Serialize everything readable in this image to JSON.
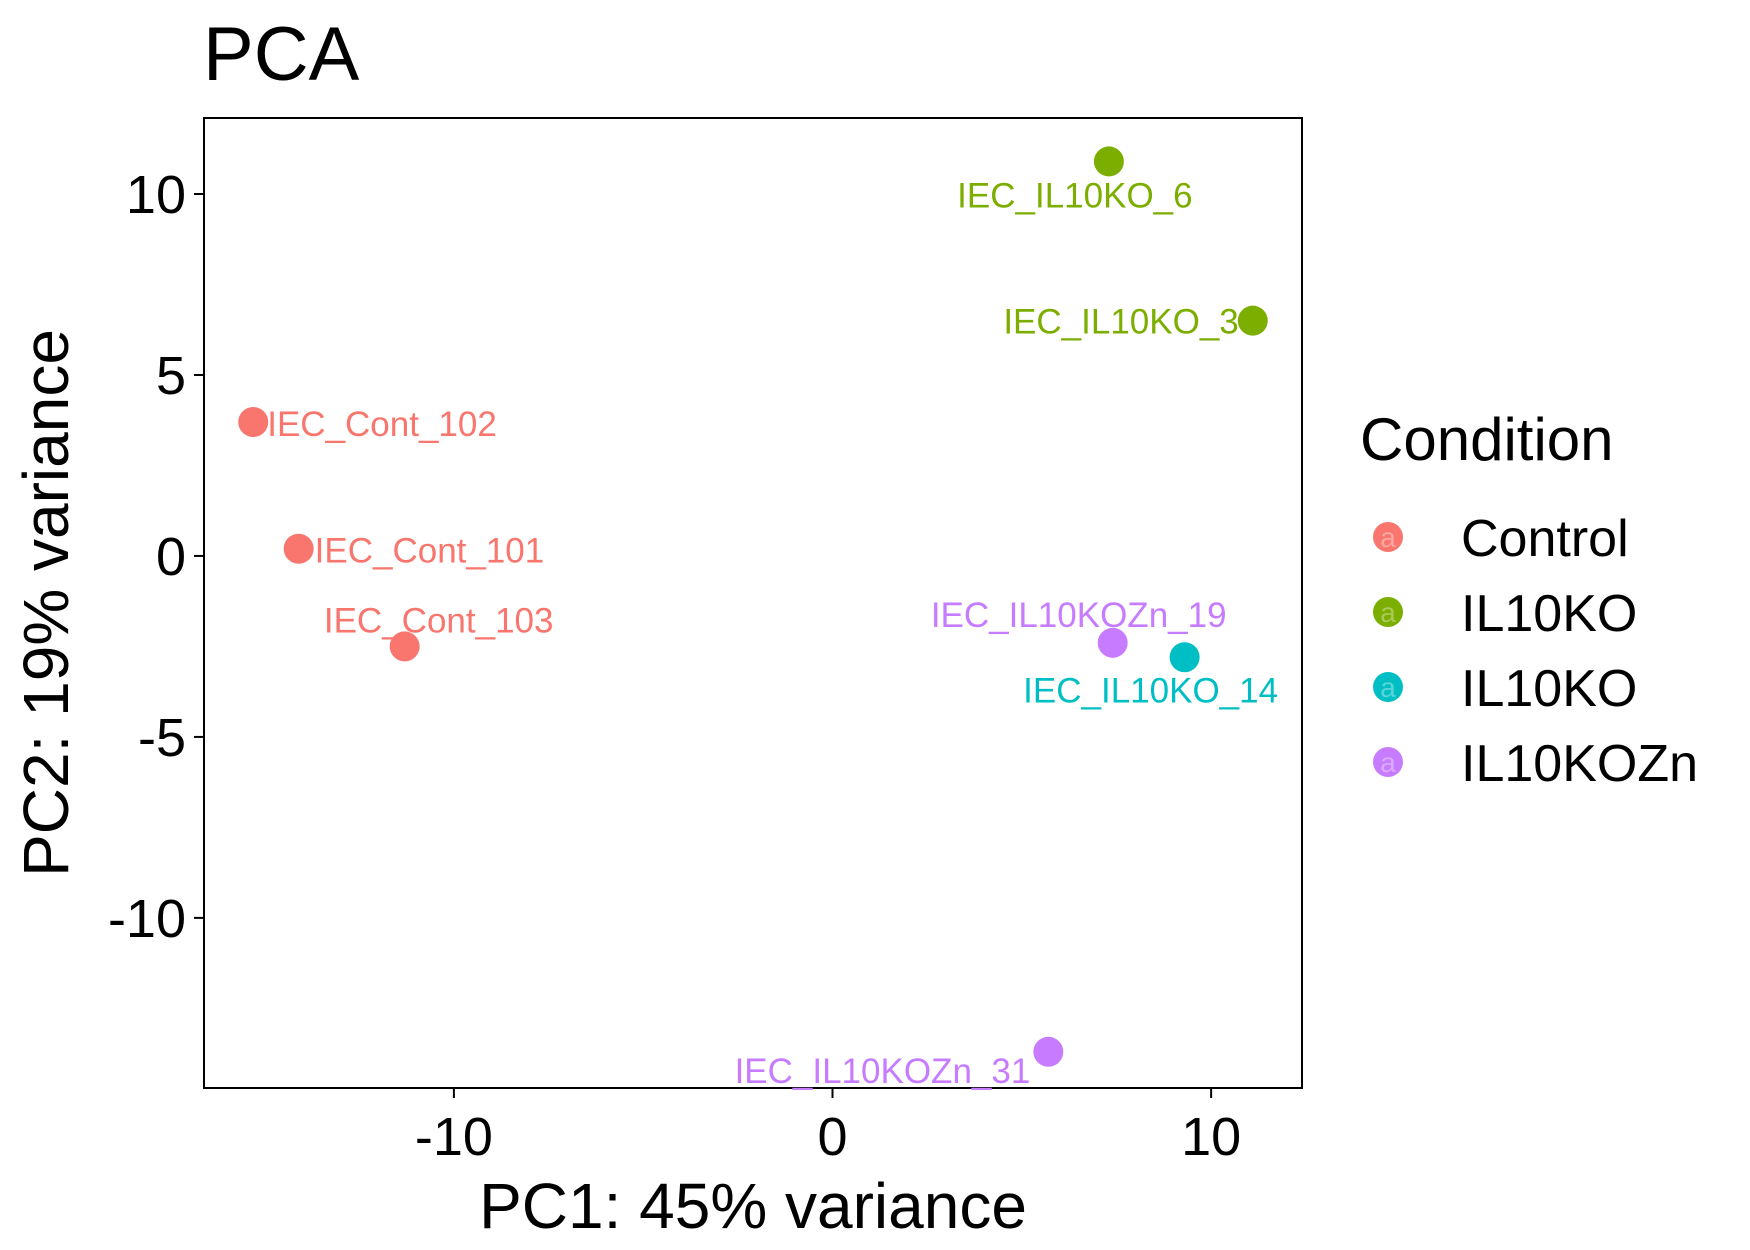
{
  "chart_data": {
    "type": "scatter",
    "title": "PCA",
    "xlabel": "PC1: 45% variance",
    "ylabel": "PC2: 19% variance",
    "xlim": [
      -16.6,
      12.4
    ],
    "ylim": [
      -14.7,
      12.1
    ],
    "xticks": [
      -10,
      0,
      10
    ],
    "xtick_labels": [
      "-10",
      "0",
      "10"
    ],
    "yticks": [
      10,
      5,
      0,
      -5,
      -10
    ],
    "ytick_labels": [
      "10",
      "5",
      "0",
      "-5",
      "-10"
    ],
    "grid": false,
    "legend": {
      "title": "Condition",
      "placement": "right",
      "entries": [
        {
          "label": "Control",
          "color": "#F8766D",
          "key_glyph": "a"
        },
        {
          "label": "IL10KO",
          "color": "#7CAE00",
          "key_glyph": "a"
        },
        {
          "label": "IL10KO",
          "color": "#00BFC4",
          "key_glyph": "a"
        },
        {
          "label": "IL10KOZn",
          "color": "#C77CFF",
          "key_glyph": "a"
        }
      ]
    },
    "series": [
      {
        "name": "Control",
        "color": "#F8766D",
        "points": [
          {
            "x": -15.3,
            "y": 3.7,
            "label": "IEC_Cont_102"
          },
          {
            "x": -14.1,
            "y": 0.2,
            "label": "IEC_Cont_101"
          },
          {
            "x": -11.3,
            "y": -2.5,
            "label": "IEC_Cont_103"
          }
        ]
      },
      {
        "name": "IL10KO",
        "color": "#7CAE00",
        "points": [
          {
            "x": 7.3,
            "y": 10.9,
            "label": "IEC_IL10KO_6"
          },
          {
            "x": 11.1,
            "y": 6.5,
            "label": "IEC_IL10KO_3"
          }
        ]
      },
      {
        "name": "IL10KO",
        "color": "#00BFC4",
        "points": [
          {
            "x": 9.3,
            "y": -2.8,
            "label": "IEC_IL10KO_14"
          }
        ]
      },
      {
        "name": "IL10KOZn",
        "color": "#C77CFF",
        "points": [
          {
            "x": 7.4,
            "y": -2.4,
            "label": "IEC_IL10KOZn_19"
          },
          {
            "x": 5.7,
            "y": -13.7,
            "label": "IEC_IL10KOZn_31"
          }
        ]
      }
    ]
  }
}
